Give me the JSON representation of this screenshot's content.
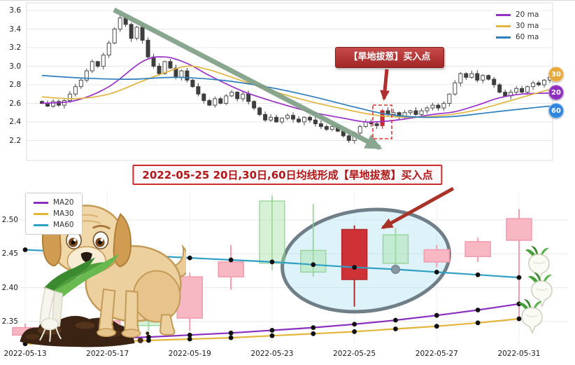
{
  "top_chart": {
    "legend": [
      {
        "label": "20 ma",
        "color": "#9b2fc9"
      },
      {
        "label": "30 ma",
        "color": "#e0b63f"
      },
      {
        "label": "60 ma",
        "color": "#2e7fbf"
      }
    ],
    "y_ticks": [
      "3.6",
      "3.4",
      "3.2",
      "3.0",
      "2.8",
      "2.6",
      "2.4",
      "2.2"
    ],
    "badges": [
      {
        "label": "30",
        "color": "#e8a93b"
      },
      {
        "label": "20",
        "color": "#8e2fbe"
      },
      {
        "label": "60",
        "color": "#2e86de"
      }
    ],
    "annotation": {
      "label": "【旱地拔葱】买入点",
      "color": "#b03030"
    }
  },
  "middle_title": {
    "text": "2022-05-25 20日,30日,60日均线形成【旱地拔葱】买入点",
    "color": "#b21616"
  },
  "bottom_chart": {
    "legend": [
      {
        "label": "MA20",
        "color": "#8a2fc0"
      },
      {
        "label": "MA30",
        "color": "#e3b53a"
      },
      {
        "label": "MA60",
        "color": "#2f9fc4"
      }
    ],
    "y_ticks": [
      "2.50",
      "2.45",
      "2.40",
      "2.35"
    ],
    "x_ticks": [
      "2022-05-13",
      "2022-05-17",
      "2022-05-19",
      "2022-05-23",
      "2022-05-25",
      "2022-05-27",
      "2022-05-31"
    ]
  },
  "chart_data": [
    {
      "type": "candlestick",
      "panel": "daily-overview",
      "ylim": [
        2.15,
        3.65
      ],
      "y_ticks": [
        3.6,
        3.4,
        3.2,
        3.0,
        2.8,
        2.6,
        2.4,
        2.2
      ],
      "closes": [
        2.6,
        2.57,
        2.62,
        2.58,
        2.63,
        2.7,
        2.78,
        2.85,
        2.95,
        3.05,
        3.0,
        3.12,
        3.25,
        3.4,
        3.52,
        3.45,
        3.3,
        3.42,
        3.28,
        3.1,
        3.0,
        2.92,
        3.05,
        2.98,
        2.88,
        2.95,
        2.85,
        2.78,
        2.7,
        2.63,
        2.58,
        2.65,
        2.6,
        2.68,
        2.72,
        2.65,
        2.7,
        2.62,
        2.55,
        2.48,
        2.42,
        2.45,
        2.4,
        2.44,
        2.47,
        2.43,
        2.4,
        2.45,
        2.42,
        2.38,
        2.35,
        2.32,
        2.35,
        2.3,
        2.25,
        2.2,
        2.28,
        2.35,
        2.4,
        2.38,
        2.36,
        2.52,
        2.48,
        2.5,
        2.46,
        2.5,
        2.52,
        2.48,
        2.52,
        2.55,
        2.58,
        2.55,
        2.6,
        2.7,
        2.82,
        2.92,
        2.88,
        2.92,
        2.85,
        2.9,
        2.86,
        2.8,
        2.72,
        2.68,
        2.72,
        2.76,
        2.72,
        2.78,
        2.82,
        2.8,
        2.85,
        2.88
      ],
      "buy_point_index": 61,
      "buy_point_label": "【旱地拔葱】买入点",
      "trend_note": "large downtrend arrow from peak 3.52 to buy point",
      "ma_series": [
        {
          "name": "20 ma",
          "color": "#9b2fc9",
          "keypoints": [
            [
              0,
              2.6
            ],
            [
              6,
              2.63
            ],
            [
              12,
              2.78
            ],
            [
              18,
              3.05
            ],
            [
              22,
              3.1
            ],
            [
              26,
              3.03
            ],
            [
              30,
              2.9
            ],
            [
              36,
              2.73
            ],
            [
              42,
              2.61
            ],
            [
              48,
              2.51
            ],
            [
              54,
              2.44
            ],
            [
              58,
              2.4
            ],
            [
              62,
              2.41
            ],
            [
              66,
              2.44
            ],
            [
              70,
              2.48
            ],
            [
              74,
              2.51
            ],
            [
              78,
              2.58
            ],
            [
              82,
              2.66
            ],
            [
              86,
              2.7
            ],
            [
              91,
              2.71
            ]
          ]
        },
        {
          "name": "30 ma",
          "color": "#e0b63f",
          "keypoints": [
            [
              0,
              2.67
            ],
            [
              6,
              2.65
            ],
            [
              12,
              2.7
            ],
            [
              18,
              2.84
            ],
            [
              22,
              2.93
            ],
            [
              26,
              3.0
            ],
            [
              30,
              2.96
            ],
            [
              36,
              2.84
            ],
            [
              42,
              2.72
            ],
            [
              48,
              2.62
            ],
            [
              54,
              2.54
            ],
            [
              60,
              2.47
            ],
            [
              66,
              2.45
            ],
            [
              72,
              2.47
            ],
            [
              78,
              2.53
            ],
            [
              84,
              2.63
            ],
            [
              88,
              2.7
            ],
            [
              91,
              2.75
            ]
          ]
        },
        {
          "name": "60 ma",
          "color": "#2e7fbf",
          "keypoints": [
            [
              0,
              2.9
            ],
            [
              8,
              2.87
            ],
            [
              16,
              2.86
            ],
            [
              24,
              2.88
            ],
            [
              32,
              2.85
            ],
            [
              40,
              2.78
            ],
            [
              48,
              2.68
            ],
            [
              56,
              2.56
            ],
            [
              62,
              2.48
            ],
            [
              68,
              2.45
            ],
            [
              74,
              2.46
            ],
            [
              80,
              2.5
            ],
            [
              86,
              2.54
            ],
            [
              91,
              2.57
            ]
          ]
        }
      ]
    },
    {
      "type": "candlestick",
      "panel": "zoom-may-2022",
      "ylim": [
        2.31,
        2.55
      ],
      "y_ticks": [
        2.5,
        2.45,
        2.4,
        2.35
      ],
      "x_tick_labels": [
        "2022-05-13",
        "2022-05-17",
        "2022-05-19",
        "2022-05-23",
        "2022-05-25",
        "2022-05-27",
        "2022-05-31"
      ],
      "dates": [
        "2022-05-13",
        "2022-05-16",
        "2022-05-17",
        "2022-05-18",
        "2022-05-19",
        "2022-05-20",
        "2022-05-23",
        "2022-05-24",
        "2022-05-25",
        "2022-05-26",
        "2022-05-27",
        "2022-05-30",
        "2022-05-31"
      ],
      "candles": [
        [
          2.33,
          2.347,
          2.32,
          2.341,
          "up"
        ],
        [
          2.341,
          2.352,
          2.326,
          2.333,
          "down"
        ],
        [
          2.333,
          2.356,
          2.329,
          2.351,
          "up"
        ],
        [
          2.351,
          2.362,
          2.336,
          2.344,
          "down"
        ],
        [
          2.355,
          2.422,
          2.336,
          2.416,
          "up"
        ],
        [
          2.416,
          2.463,
          2.397,
          2.438,
          "up"
        ],
        [
          2.528,
          2.536,
          2.426,
          2.436,
          "down"
        ],
        [
          2.455,
          2.524,
          2.416,
          2.423,
          "down"
        ],
        [
          2.412,
          2.492,
          2.372,
          2.486,
          "buy"
        ],
        [
          2.478,
          2.488,
          2.428,
          2.436,
          "down"
        ],
        [
          2.438,
          2.463,
          2.43,
          2.456,
          "up"
        ],
        [
          2.446,
          2.474,
          2.438,
          2.468,
          "up"
        ],
        [
          2.47,
          2.516,
          2.356,
          2.502,
          "up"
        ]
      ],
      "ma_series": [
        {
          "name": "MA20",
          "color": "#8a2fc0",
          "values": [
            2.322,
            2.323,
            2.325,
            2.327,
            2.33,
            2.333,
            2.337,
            2.341,
            2.346,
            2.352,
            2.359,
            2.367,
            2.376
          ]
        },
        {
          "name": "MA30",
          "color": "#e3b53a",
          "values": [
            2.317,
            2.318,
            2.32,
            2.322,
            2.324,
            2.326,
            2.329,
            2.332,
            2.335,
            2.339,
            2.343,
            2.348,
            2.354
          ]
        },
        {
          "name": "MA60",
          "color": "#2f9fc4",
          "values": [
            2.456,
            2.453,
            2.45,
            2.447,
            2.444,
            2.441,
            2.438,
            2.434,
            2.43,
            2.427,
            2.423,
            2.419,
            2.415
          ]
        }
      ],
      "highlight": {
        "date": "2022-05-25",
        "shape": "ellipse"
      },
      "highlight_dot": {
        "series": "MA60",
        "day_index": 9
      }
    }
  ]
}
